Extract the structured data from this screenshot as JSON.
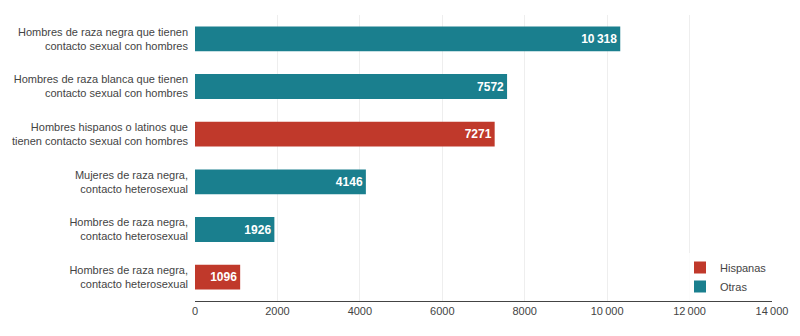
{
  "chart_data": {
    "type": "bar",
    "orientation": "horizontal",
    "categories": [
      "Hombres de raza negra que tienen\ncontacto sexual con hombres",
      "Hombres de raza blanca que tienen\ncontacto sexual con hombres",
      "Hombres hispanos o latinos que\ntienen contacto sexual con hombres",
      "Mujeres de raza negra,\ncontacto heterosexual",
      "Hombres de raza negra,\ncontacto heterosexual",
      "Hombres de raza negra,\ncontacto heterosexual"
    ],
    "series": [
      {
        "name": "Hispanas",
        "color": "#c0392b",
        "values": [
          null,
          null,
          7271,
          null,
          null,
          1096
        ],
        "value_labels": [
          null,
          null,
          "7271",
          null,
          null,
          "1096"
        ]
      },
      {
        "name": "Otras",
        "color": "#1a7f8e",
        "values": [
          10318,
          7572,
          null,
          4146,
          1926,
          null
        ],
        "value_labels": [
          "10 318",
          "7572",
          null,
          "4146",
          "1926",
          null
        ]
      }
    ],
    "xlim": [
      0,
      14000
    ],
    "xticks": [
      0,
      2000,
      4000,
      6000,
      8000,
      {
        "value": 10000,
        "label": "10 000"
      },
      {
        "value": 12000,
        "label": "12 000"
      },
      {
        "value": 14000,
        "label": "14 000"
      }
    ],
    "grid": true,
    "legend": "lower right",
    "data_labels": true
  }
}
